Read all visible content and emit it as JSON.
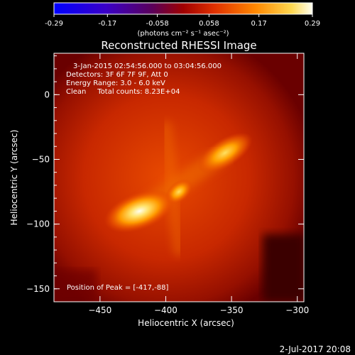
{
  "chart_data": {
    "type": "heatmap",
    "title": "Reconstructed RHESSI Image",
    "xlabel": "Heliocentric X (arcsec)",
    "ylabel": "Heliocentric Y (arcsec)",
    "xlim": [
      -485,
      -295
    ],
    "ylim": [
      -160,
      32
    ],
    "x_ticks": [
      -450,
      -400,
      -350,
      -300
    ],
    "y_ticks": [
      -150,
      -100,
      -50,
      0
    ],
    "colorbar": {
      "range": [
        -0.29,
        0.29
      ],
      "ticks": [
        -0.29,
        -0.17,
        -0.058,
        0.058,
        0.17,
        0.29
      ],
      "tick_labels": [
        "-0.29",
        "-0.17",
        "-0.058",
        "0.058",
        "0.17",
        "0.29"
      ],
      "unit_label": "(photons cm⁻² s⁻¹ asec⁻²)"
    },
    "annotations": [
      "3-Jan-2015 02:54:56.000 to 03:04:56.000",
      "Detectors: 3F 6F 7F 9F, Att 0",
      "Energy Range: 3.0 - 6.0 keV",
      "Clean     Total counts: 8.23E+04"
    ],
    "peak_label": "Position of Peak = [-417,-88]",
    "sources": [
      {
        "x": -420,
        "y": -90,
        "peak": 0.29
      },
      {
        "x": -355,
        "y": -45,
        "peak": 0.25
      },
      {
        "x": -390,
        "y": -75,
        "peak": 0.2
      }
    ]
  },
  "footer": {
    "timestamp": "2-Jul-2017 20:08"
  },
  "colors": {
    "background": "#000000",
    "text": "#ffffff"
  }
}
